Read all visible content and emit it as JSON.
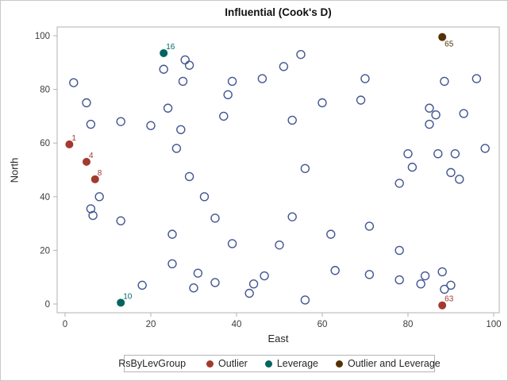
{
  "title": "Influential (Cook's D)",
  "x_axis": {
    "label": "East",
    "ticks": [
      0,
      20,
      40,
      60,
      80,
      100
    ]
  },
  "y_axis": {
    "label": "North",
    "ticks": [
      0,
      20,
      40,
      60,
      80,
      100
    ]
  },
  "legend": {
    "title": "RsByLevGroup",
    "entries": [
      {
        "label": "Outlier",
        "color": "#A23A2E"
      },
      {
        "label": "Leverage",
        "color": "#01665E"
      },
      {
        "label": "Outlier and Leverage",
        "color": "#543005"
      }
    ]
  },
  "colors": {
    "observation_marker": "#445694",
    "outlier": "#A23A2E",
    "leverage": "#01665E",
    "outlier_and_leverage": "#543005",
    "plot_frame": "#b2b2b2",
    "tick_text": "#3c3c3c"
  },
  "chart_data": {
    "type": "scatter",
    "title": "Influential (Cook's D)",
    "xlabel": "East",
    "ylabel": "North",
    "x_range": [
      -1.85,
      101.3
    ],
    "y_range": [
      -3.25,
      103.25
    ],
    "grid": false,
    "legend_position": "bottom",
    "series": [
      {
        "name": "Observation",
        "marker": "circle-outline",
        "color": "#445694",
        "points": [
          [
            2,
            82.5
          ],
          [
            5,
            75
          ],
          [
            6,
            67
          ],
          [
            13,
            68
          ],
          [
            20,
            66.5
          ],
          [
            23,
            87.5
          ],
          [
            28,
            91
          ],
          [
            29,
            89
          ],
          [
            27.5,
            83
          ],
          [
            24,
            73
          ],
          [
            27,
            65
          ],
          [
            26,
            58
          ],
          [
            29,
            47.5
          ],
          [
            39,
            83
          ],
          [
            38,
            78
          ],
          [
            37,
            70
          ],
          [
            55,
            93
          ],
          [
            51,
            88.5
          ],
          [
            46,
            84
          ],
          [
            70,
            84
          ],
          [
            88.5,
            83
          ],
          [
            96,
            84
          ],
          [
            60,
            75
          ],
          [
            69,
            76
          ],
          [
            53,
            68.5
          ],
          [
            85,
            73
          ],
          [
            86.5,
            70.5
          ],
          [
            85,
            67
          ],
          [
            93,
            71
          ],
          [
            98,
            58
          ],
          [
            80,
            56
          ],
          [
            87,
            56
          ],
          [
            91,
            56
          ],
          [
            81,
            51
          ],
          [
            90,
            49
          ],
          [
            92,
            46.5
          ],
          [
            78,
            45
          ],
          [
            56,
            50.5
          ],
          [
            8,
            40
          ],
          [
            6,
            35.5
          ],
          [
            6.5,
            33
          ],
          [
            13,
            31
          ],
          [
            25,
            26
          ],
          [
            32.5,
            40
          ],
          [
            35,
            32
          ],
          [
            39,
            22.5
          ],
          [
            25,
            15
          ],
          [
            31,
            11.5
          ],
          [
            18,
            7
          ],
          [
            30,
            6
          ],
          [
            35,
            8
          ],
          [
            43,
            4
          ],
          [
            44,
            7.5
          ],
          [
            46.5,
            10.5
          ],
          [
            56,
            1.5
          ],
          [
            53,
            32.5
          ],
          [
            71,
            29
          ],
          [
            62,
            26
          ],
          [
            50,
            22
          ],
          [
            78,
            20
          ],
          [
            63,
            12.5
          ],
          [
            71,
            11
          ],
          [
            78,
            9
          ],
          [
            84,
            10.5
          ],
          [
            83,
            7.5
          ],
          [
            88,
            12
          ],
          [
            88.5,
            5.5
          ],
          [
            90,
            7
          ]
        ]
      },
      {
        "name": "Outlier",
        "marker": "circle-filled",
        "color": "#A23A2E",
        "points": [
          {
            "x": 1,
            "y": 59.5,
            "label": "1",
            "label_side": "ne"
          },
          {
            "x": 5,
            "y": 53,
            "label": "4",
            "label_side": "ne"
          },
          {
            "x": 7,
            "y": 46.5,
            "label": "8",
            "label_side": "ne"
          },
          {
            "x": 88,
            "y": -0.5,
            "label": "63",
            "label_side": "ne"
          }
        ]
      },
      {
        "name": "Leverage",
        "marker": "circle-filled",
        "color": "#01665E",
        "points": [
          {
            "x": 23,
            "y": 93.5,
            "label": "16",
            "label_side": "ne"
          },
          {
            "x": 13,
            "y": 0.5,
            "label": "10",
            "label_side": "ne"
          }
        ]
      },
      {
        "name": "Outlier and Leverage",
        "marker": "circle-filled",
        "color": "#543005",
        "points": [
          {
            "x": 88,
            "y": 99.5,
            "label": "65",
            "label_side": "se"
          }
        ]
      }
    ]
  }
}
